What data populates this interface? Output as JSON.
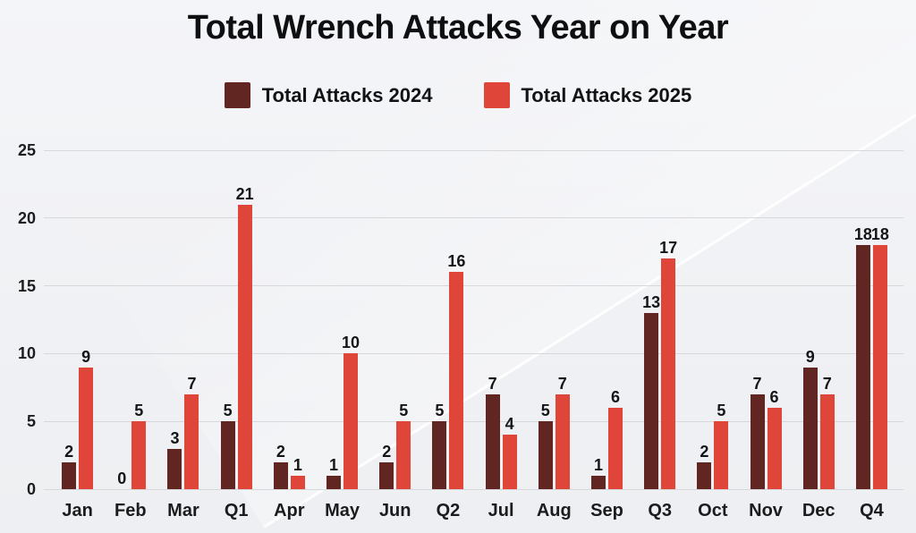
{
  "chart_data": {
    "type": "bar",
    "title": "Total Wrench Attacks Year on Year",
    "categories": [
      "Jan",
      "Feb",
      "Mar",
      "Q1",
      "Apr",
      "May",
      "Jun",
      "Q2",
      "Jul",
      "Aug",
      "Sep",
      "Q3",
      "Oct",
      "Nov",
      "Dec",
      "Q4"
    ],
    "series": [
      {
        "name": "Total Attacks 2024",
        "color": "#622622",
        "values": [
          2,
          0,
          3,
          5,
          2,
          1,
          2,
          5,
          7,
          5,
          1,
          13,
          2,
          7,
          9,
          18
        ]
      },
      {
        "name": "Total Attacks 2025",
        "color": "#e0453a",
        "values": [
          9,
          5,
          7,
          21,
          1,
          10,
          5,
          16,
          4,
          7,
          6,
          17,
          5,
          6,
          7,
          18
        ]
      }
    ],
    "xlabel": "",
    "ylabel": "",
    "ylim": [
      0,
      25
    ],
    "yticks": [
      0,
      5,
      10,
      15,
      20,
      25
    ],
    "grid": "horizontal",
    "gridline_color": "#d6d8db",
    "background_color": "#f1f2f5",
    "value_labels": true,
    "legend_position": "top"
  }
}
